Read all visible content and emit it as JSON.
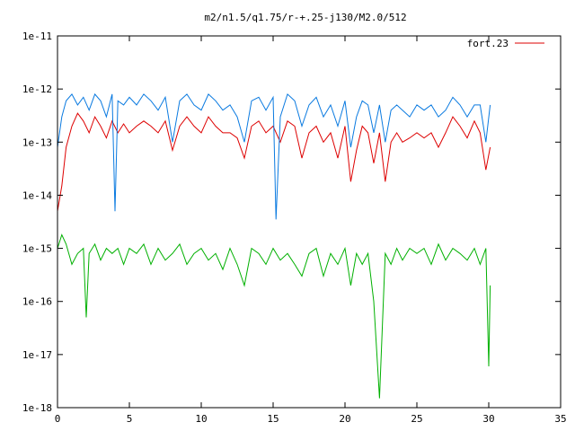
{
  "chart_data": {
    "type": "line",
    "title": "m2/n1.5/q1.75/r-+.25-j130/M2.0/512",
    "xlabel": "",
    "ylabel": "",
    "xlim": [
      0,
      35
    ],
    "ylim": [
      1e-18,
      1e-11
    ],
    "yscale": "log",
    "grid": false,
    "legend_placement": "top-right",
    "x_ticks": [
      0,
      5,
      10,
      15,
      20,
      25,
      30,
      35
    ],
    "x_tick_labels": [
      "0",
      "5",
      "10",
      "15",
      "20",
      "25",
      "30",
      "35"
    ],
    "y_ticks": [
      1e-18,
      1e-17,
      1e-16,
      1e-15,
      1e-14,
      1e-13,
      1e-12,
      1e-11
    ],
    "y_tick_labels": [
      "1e-18",
      "1e-17",
      "1e-16",
      "1e-15",
      "1e-14",
      "1e-13",
      "1e-12",
      "1e-11"
    ],
    "series": [
      {
        "name": "fort.23",
        "color": "#dd0000",
        "x": [
          0,
          0.3,
          0.6,
          1.0,
          1.4,
          1.8,
          2.2,
          2.6,
          3.0,
          3.4,
          3.8,
          4.2,
          4.6,
          5.0,
          5.5,
          6.0,
          6.5,
          7.0,
          7.5,
          8.0,
          8.5,
          9.0,
          9.5,
          10.0,
          10.5,
          11.0,
          11.5,
          12.0,
          12.5,
          13.0,
          13.5,
          14.0,
          14.5,
          15.0,
          15.5,
          16.0,
          16.5,
          17.0,
          17.5,
          18.0,
          18.5,
          19.0,
          19.5,
          20.0,
          20.4,
          20.8,
          21.2,
          21.6,
          22.0,
          22.4,
          22.8,
          23.2,
          23.6,
          24.0,
          24.5,
          25.0,
          25.5,
          26.0,
          26.5,
          27.0,
          27.5,
          28.0,
          28.5,
          29.0,
          29.4,
          29.8,
          30.1
        ],
        "y": [
          5e-15,
          1.5e-14,
          8e-14,
          2e-13,
          3.5e-13,
          2.5e-13,
          1.5e-13,
          3e-13,
          2e-13,
          1.2e-13,
          2.5e-13,
          1.5e-13,
          2.2e-13,
          1.5e-13,
          2e-13,
          2.5e-13,
          2e-13,
          1.5e-13,
          2.5e-13,
          7e-14,
          2e-13,
          3e-13,
          2e-13,
          1.5e-13,
          3e-13,
          2e-13,
          1.5e-13,
          1.5e-13,
          1.2e-13,
          5e-14,
          2e-13,
          2.5e-13,
          1.5e-13,
          2e-13,
          1e-13,
          2.5e-13,
          2e-13,
          5e-14,
          1.5e-13,
          2e-13,
          1e-13,
          1.5e-13,
          5e-14,
          2e-13,
          1.8e-14,
          7e-14,
          2e-13,
          1.5e-13,
          4e-14,
          1.5e-13,
          1.8e-14,
          1e-13,
          1.5e-13,
          1e-13,
          1.2e-13,
          1.5e-13,
          1.2e-13,
          1.5e-13,
          8e-14,
          1.5e-13,
          3e-13,
          2e-13,
          1.2e-13,
          2.5e-13,
          1.5e-13,
          3e-14,
          8e-14
        ]
      },
      {
        "name": "",
        "color": "#0a7ae0",
        "x": [
          0,
          0.3,
          0.6,
          1.0,
          1.4,
          1.8,
          2.2,
          2.6,
          3.0,
          3.4,
          3.8,
          4.0,
          4.2,
          4.6,
          5.0,
          5.5,
          6.0,
          6.5,
          7.0,
          7.5,
          8.0,
          8.5,
          9.0,
          9.5,
          10.0,
          10.5,
          11.0,
          11.5,
          12.0,
          12.5,
          13.0,
          13.5,
          14.0,
          14.5,
          15.0,
          15.2,
          15.5,
          16.0,
          16.5,
          17.0,
          17.5,
          18.0,
          18.5,
          19.0,
          19.5,
          20.0,
          20.4,
          20.8,
          21.2,
          21.6,
          22.0,
          22.4,
          22.8,
          23.2,
          23.6,
          24.0,
          24.5,
          25.0,
          25.5,
          26.0,
          26.5,
          27.0,
          27.5,
          28.0,
          28.5,
          29.0,
          29.4,
          29.8,
          30.1
        ],
        "y": [
          8e-14,
          3e-13,
          6e-13,
          8e-13,
          5e-13,
          7e-13,
          4e-13,
          8e-13,
          6e-13,
          3e-13,
          8e-13,
          5e-15,
          6e-13,
          5e-13,
          7e-13,
          5e-13,
          8e-13,
          6e-13,
          4e-13,
          7e-13,
          1e-13,
          6e-13,
          8e-13,
          5e-13,
          4e-13,
          8e-13,
          6e-13,
          4e-13,
          5e-13,
          3e-13,
          1e-13,
          6e-13,
          7e-13,
          4e-13,
          7e-13,
          3.5e-15,
          3e-13,
          8e-13,
          6e-13,
          2e-13,
          5e-13,
          7e-13,
          3e-13,
          5e-13,
          2e-13,
          6e-13,
          8e-14,
          3e-13,
          6e-13,
          5e-13,
          1.5e-13,
          5e-13,
          1e-13,
          4e-13,
          5e-13,
          4e-13,
          3e-13,
          5e-13,
          4e-13,
          5e-13,
          3e-13,
          4e-13,
          7e-13,
          5e-13,
          3e-13,
          5e-13,
          5e-13,
          1e-13,
          5e-13
        ]
      },
      {
        "name": "",
        "color": "#00b000",
        "x": [
          0,
          0.3,
          0.6,
          1.0,
          1.4,
          1.8,
          2.0,
          2.2,
          2.6,
          3.0,
          3.4,
          3.8,
          4.2,
          4.6,
          5.0,
          5.5,
          6.0,
          6.5,
          7.0,
          7.5,
          8.0,
          8.5,
          9.0,
          9.5,
          10.0,
          10.5,
          11.0,
          11.5,
          12.0,
          12.5,
          13.0,
          13.5,
          14.0,
          14.5,
          15.0,
          15.5,
          16.0,
          16.5,
          17.0,
          17.5,
          18.0,
          18.5,
          19.0,
          19.5,
          20.0,
          20.4,
          20.8,
          21.2,
          21.6,
          22.0,
          22.4,
          22.8,
          23.2,
          23.6,
          24.0,
          24.5,
          25.0,
          25.5,
          26.0,
          26.5,
          27.0,
          27.5,
          28.0,
          28.5,
          29.0,
          29.4,
          29.8,
          30.0,
          30.1
        ],
        "y": [
          1e-15,
          1.8e-15,
          1.2e-15,
          5e-16,
          8e-16,
          1e-15,
          5e-17,
          8e-16,
          1.2e-15,
          6e-16,
          1e-15,
          8e-16,
          1e-15,
          5e-16,
          1e-15,
          8e-16,
          1.2e-15,
          5e-16,
          1e-15,
          6e-16,
          8e-16,
          1.2e-15,
          5e-16,
          8e-16,
          1e-15,
          6e-16,
          8e-16,
          4e-16,
          1e-15,
          5e-16,
          2e-16,
          1e-15,
          8e-16,
          5e-16,
          1e-15,
          6e-16,
          8e-16,
          5e-16,
          3e-16,
          8e-16,
          1e-15,
          3e-16,
          8e-16,
          5e-16,
          1e-15,
          2e-16,
          8e-16,
          5e-16,
          8e-16,
          1e-16,
          1.5e-18,
          8e-16,
          5e-16,
          1e-15,
          6e-16,
          1e-15,
          8e-16,
          1e-15,
          5e-16,
          1.2e-15,
          6e-16,
          1e-15,
          8e-16,
          6e-16,
          1e-15,
          5e-16,
          1e-15,
          6e-18,
          2e-16
        ]
      }
    ]
  }
}
